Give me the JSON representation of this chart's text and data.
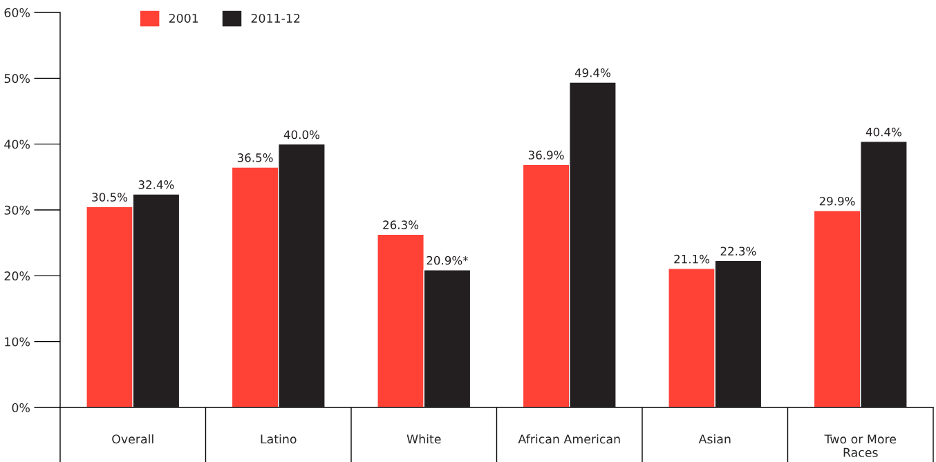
{
  "chart_data": {
    "type": "bar",
    "categories": [
      "Overall",
      "Latino",
      "White",
      "African American",
      "Asian",
      "Two or More\nRaces"
    ],
    "series": [
      {
        "name": "2001",
        "color": "#ff4136",
        "values": [
          30.5,
          36.5,
          26.3,
          36.9,
          21.1,
          29.9
        ],
        "value_labels": [
          "30.5%",
          "36.5%",
          "26.3%",
          "36.9%",
          "21.1%",
          "29.9%"
        ]
      },
      {
        "name": "2011-12",
        "color": "#231f20",
        "values": [
          32.4,
          40.0,
          20.9,
          49.4,
          22.3,
          40.4
        ],
        "value_labels": [
          "32.4%",
          "40.0%",
          "20.9%*",
          "49.4%",
          "22.3%",
          "40.4%"
        ]
      }
    ],
    "ylim": [
      0,
      60
    ],
    "yticks": [
      {
        "value": 0,
        "label": "0%"
      },
      {
        "value": 10,
        "label": "10%"
      },
      {
        "value": 20,
        "label": "20%"
      },
      {
        "value": 30,
        "label": "30%"
      },
      {
        "value": 40,
        "label": "40%"
      },
      {
        "value": 50,
        "label": "50%"
      },
      {
        "value": 60,
        "label": "60%"
      }
    ],
    "grid": false,
    "legend": "top left"
  }
}
